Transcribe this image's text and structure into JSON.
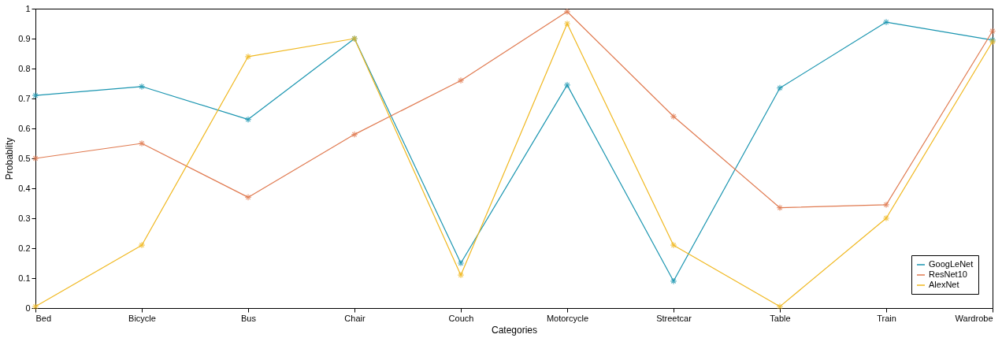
{
  "chart_data": {
    "type": "line",
    "xlabel": "Categories",
    "ylabel": "Probablity",
    "categories": [
      "Bed",
      "Bicycle",
      "Bus",
      "Chair",
      "Couch",
      "Motorcycle",
      "Streetcar",
      "Table",
      "Train",
      "Wardrobe"
    ],
    "ylim": [
      0,
      1
    ],
    "yticks": [
      0,
      0.1,
      0.2,
      0.3,
      0.4,
      0.5,
      0.6,
      0.7,
      0.8,
      0.9,
      1
    ],
    "grid": false,
    "legend": "bottom right",
    "marker": "cross",
    "line_style": "solid",
    "series": [
      {
        "name": "GoogLeNet",
        "color": "#1a95b0",
        "values": [
          0.71,
          0.74,
          0.63,
          0.9,
          0.15,
          0.745,
          0.09,
          0.735,
          0.955,
          0.895
        ]
      },
      {
        "name": "ResNet10",
        "color": "#e07a50",
        "values": [
          0.5,
          0.55,
          0.37,
          0.58,
          0.76,
          0.99,
          0.64,
          0.335,
          0.345,
          0.925
        ]
      },
      {
        "name": "AlexNet",
        "color": "#f0b820",
        "values": [
          0.005,
          0.21,
          0.84,
          0.9,
          0.11,
          0.95,
          0.21,
          0.005,
          0.3,
          0.89
        ]
      }
    ]
  }
}
